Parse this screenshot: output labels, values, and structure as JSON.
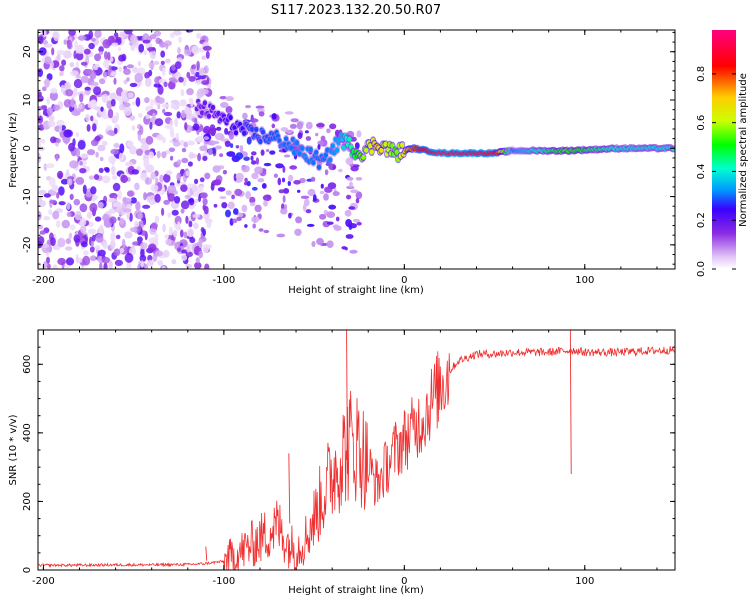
{
  "title": "S117.2023.132.20.50.R07",
  "chart_data": [
    {
      "type": "heatmap",
      "title": "S117.2023.132.20.50.R07",
      "xlabel": "Height of straight line (km)",
      "ylabel": "Frequency (Hz)",
      "xlim": [
        -203,
        150
      ],
      "ylim": [
        -25,
        24.5
      ],
      "xticks": [
        -200,
        -100,
        0,
        100
      ],
      "yticks": [
        -20,
        -10,
        0,
        10,
        20
      ],
      "colorbar": {
        "label": "Normalized spectral amplitude",
        "range": [
          0,
          0.98
        ],
        "ticks": [
          0.0,
          0.2,
          0.4,
          0.6,
          0.8
        ],
        "colormap": [
          "#ffffff",
          "#e2c6f6",
          "#8a2be2",
          "#3a00ff",
          "#0099ff",
          "#00ffd0",
          "#00ff00",
          "#ccff00",
          "#ffcc00",
          "#ff0000",
          "#ff007f"
        ]
      },
      "signal_track": [
        {
          "x": -115,
          "f": 9,
          "a": 0.18
        },
        {
          "x": -100,
          "f": 6,
          "a": 0.22
        },
        {
          "x": -85,
          "f": 3,
          "a": 0.28
        },
        {
          "x": -70,
          "f": 2,
          "a": 0.3
        },
        {
          "x": -55,
          "f": -1,
          "a": 0.32
        },
        {
          "x": -45,
          "f": -3,
          "a": 0.3
        },
        {
          "x": -35,
          "f": 2,
          "a": 0.35
        },
        {
          "x": -25,
          "f": -1,
          "a": 0.55
        },
        {
          "x": -15,
          "f": 1,
          "a": 0.7
        },
        {
          "x": -5,
          "f": -1,
          "a": 0.55
        },
        {
          "x": 5,
          "f": 0,
          "a": 0.8
        },
        {
          "x": 20,
          "f": -1,
          "a": 0.95
        },
        {
          "x": 50,
          "f": -1,
          "a": 0.9
        },
        {
          "x": 60,
          "f": -0.5,
          "a": 0.3
        },
        {
          "x": 90,
          "f": -0.5,
          "a": 0.55
        },
        {
          "x": 120,
          "f": 0,
          "a": 0.4
        },
        {
          "x": 150,
          "f": 0,
          "a": 0.4
        }
      ]
    },
    {
      "type": "line",
      "xlabel": "Height of straight line (km)",
      "ylabel": "SNR (10 * v/v)",
      "xlim": [
        -203,
        150
      ],
      "ylim": [
        0,
        700
      ],
      "xticks": [
        -200,
        -100,
        0,
        100
      ],
      "yticks": [
        0,
        200,
        400,
        600
      ],
      "color": "#f03030",
      "series": [
        {
          "name": "SNR",
          "x": [
            -203,
            -180,
            -160,
            -140,
            -120,
            -112,
            -100,
            -90,
            -80,
            -70,
            -65,
            -60,
            -55,
            -50,
            -45,
            -40,
            -35,
            -30,
            -25,
            -20,
            -15,
            -10,
            -5,
            0,
            5,
            10,
            15,
            20,
            25,
            30,
            35,
            40,
            50,
            60,
            70,
            80,
            90,
            95,
            100,
            110,
            120,
            130,
            140,
            150
          ],
          "y": [
            14,
            14,
            15,
            15,
            16,
            18,
            25,
            55,
            90,
            130,
            80,
            60,
            90,
            150,
            220,
            280,
            330,
            370,
            360,
            300,
            250,
            300,
            350,
            380,
            410,
            440,
            490,
            540,
            580,
            610,
            620,
            630,
            630,
            635,
            635,
            635,
            640,
            640,
            635,
            635,
            635,
            638,
            640,
            642
          ]
        }
      ],
      "spikes": [
        {
          "x": -32,
          "y": 700
        },
        {
          "x": -64,
          "y": 340
        },
        {
          "x": -110,
          "y": 68
        },
        {
          "x": 92,
          "y": 700
        }
      ]
    }
  ]
}
